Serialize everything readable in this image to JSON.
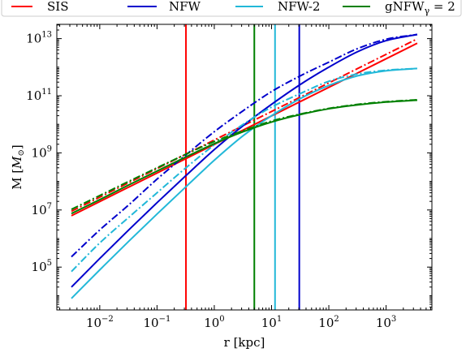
{
  "chart_data": {
    "type": "line",
    "xlabel": "r [kpc]",
    "ylabel": "M [",
    "ylabel_unit": "M",
    "ylabel_unit_sub": "⊙",
    "ylabel_close": "]",
    "xscale": "log",
    "yscale": "log",
    "xlim": [
      0.00178,
      6310
    ],
    "ylim": [
      3162,
      31623000000000
    ],
    "grid": false,
    "legend_position": "top (above plot)",
    "xticks": [
      {
        "value": 0.01,
        "base": "10",
        "exp": "−2"
      },
      {
        "value": 0.1,
        "base": "10",
        "exp": "−1"
      },
      {
        "value": 1,
        "base": "10",
        "exp": "0"
      },
      {
        "value": 10,
        "base": "10",
        "exp": "1"
      },
      {
        "value": 100,
        "base": "10",
        "exp": "2"
      },
      {
        "value": 1000,
        "base": "10",
        "exp": "3"
      }
    ],
    "yticks": [
      {
        "value": 100000,
        "base": "10",
        "exp": "5"
      },
      {
        "value": 10000000,
        "base": "10",
        "exp": "7"
      },
      {
        "value": 1000000000,
        "base": "10",
        "exp": "9"
      },
      {
        "value": 100000000000,
        "base": "10",
        "exp": "11"
      },
      {
        "value": 10000000000000,
        "base": "10",
        "exp": "13"
      }
    ],
    "legend": [
      {
        "label": "SIS",
        "color": "#ff0000"
      },
      {
        "label": "NFW",
        "color": "#0000cc"
      },
      {
        "label": "NFW-2",
        "color": "#22b8d8"
      },
      {
        "label": "gNFW",
        "sub": "γ",
        "suffix": " = 2",
        "color": "#008000"
      }
    ],
    "vlines": [
      {
        "x": 0.32,
        "color": "#ff0000"
      },
      {
        "x": 5.0,
        "color": "#008000"
      },
      {
        "x": 11.5,
        "color": "#22b8d8"
      },
      {
        "x": 30.5,
        "color": "#0000cc"
      }
    ],
    "series": [
      {
        "color": "#ff0000",
        "style": "solid",
        "x": [
          0.0032,
          0.032,
          0.32,
          3.2,
          32,
          320,
          3500
        ],
        "y": [
          6300000,
          63000000,
          630000000,
          6300000000,
          63000000000,
          630000000000,
          6900000000000
        ]
      },
      {
        "color": "#ff0000",
        "style": "dashdot",
        "x": [
          0.0032,
          0.032,
          0.32,
          3.2,
          32,
          320,
          3500
        ],
        "y": [
          9000000,
          90000000,
          900000000,
          9000000000,
          90000000000,
          900000000000,
          9800000000000
        ]
      },
      {
        "color": "#0000cc",
        "style": "solid",
        "x": [
          0.0032,
          0.01,
          0.032,
          0.1,
          0.32,
          1,
          3.2,
          10,
          32,
          100,
          320,
          1000,
          3500
        ],
        "y": [
          20000,
          200000,
          2000000,
          18000000,
          160000000,
          1300000000,
          9000000000,
          50000000000,
          250000000000,
          1000000000000,
          3500000000000,
          8500000000000,
          14000000000000
        ]
      },
      {
        "color": "#0000cc",
        "style": "dashdot",
        "x": [
          0.0032,
          0.01,
          0.032,
          0.1,
          0.32,
          1,
          3.2,
          10,
          32,
          100,
          320,
          1000,
          3500
        ],
        "y": [
          230000,
          2000000,
          15000000,
          120000000,
          850000000,
          5500000000,
          30000000000,
          140000000000,
          500000000000,
          1500000000000,
          4500000000000,
          9500000000000,
          14000000000000
        ]
      },
      {
        "color": "#22b8d8",
        "style": "solid",
        "x": [
          0.0032,
          0.01,
          0.032,
          0.1,
          0.32,
          1,
          3.2,
          10,
          32,
          100,
          320,
          1000,
          3500
        ],
        "y": [
          8000,
          80000,
          800000,
          7200000,
          65000000,
          550000000,
          4000000000,
          20000000000,
          80000000000,
          230000000000,
          500000000000,
          750000000000,
          900000000000
        ]
      },
      {
        "color": "#22b8d8",
        "style": "dashdot",
        "x": [
          0.0032,
          0.01,
          0.032,
          0.1,
          0.32,
          1,
          3.2,
          10,
          32,
          100,
          320,
          1000,
          3500
        ],
        "y": [
          70000,
          700000,
          5500000,
          40000000,
          300000000,
          1900000000,
          10000000000,
          40000000000,
          120000000000,
          320000000000,
          580000000000,
          780000000000,
          900000000000
        ]
      },
      {
        "color": "#008000",
        "style": "solid",
        "x": [
          0.0032,
          0.01,
          0.032,
          0.1,
          0.32,
          1,
          3.2,
          10,
          32,
          100,
          320,
          1000,
          3500
        ],
        "y": [
          7500000,
          23000000,
          75000000,
          230000000,
          720000000,
          2100000000,
          5500000000,
          12000000000,
          22000000000,
          35000000000,
          48000000000,
          60000000000,
          70000000000
        ]
      },
      {
        "color": "#008000",
        "style": "dashdot",
        "x": [
          0.0032,
          0.01,
          0.032,
          0.1,
          0.32,
          1,
          3.2,
          10,
          32,
          100,
          320,
          1000,
          3500
        ],
        "y": [
          10500000,
          32000000,
          100000000,
          300000000,
          900000000,
          2500000000,
          6000000000,
          13000000000,
          23000000000,
          36000000000,
          50000000000,
          62000000000,
          72000000000
        ]
      }
    ]
  }
}
